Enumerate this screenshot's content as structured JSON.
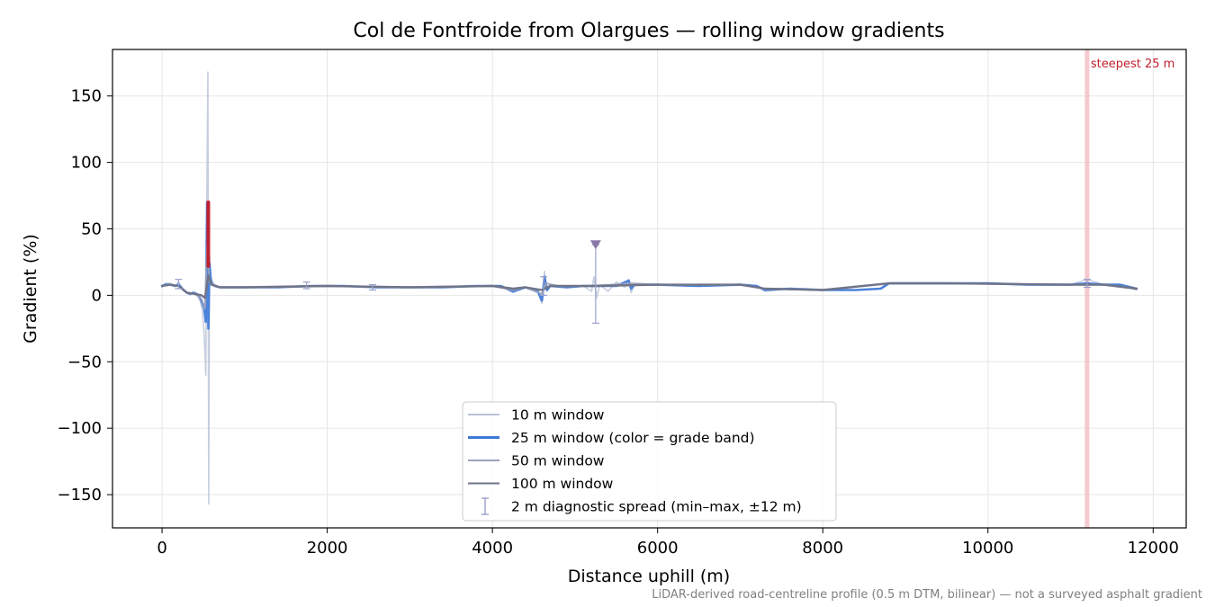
{
  "chart_data": {
    "type": "line",
    "title": "Col de Fontfroide from Olargues — rolling window gradients",
    "xlabel": "Distance uphill (m)",
    "ylabel": "Gradient (%)",
    "xlim": [
      -600,
      12400
    ],
    "ylim": [
      -175,
      185
    ],
    "xticks": [
      0,
      2000,
      4000,
      6000,
      8000,
      10000,
      12000
    ],
    "xtick_labels": [
      "0",
      "2000",
      "4000",
      "6000",
      "8000",
      "10000",
      "12000"
    ],
    "yticks": [
      150,
      100,
      50,
      0,
      -50,
      -100,
      -150
    ],
    "ytick_labels": [
      "150",
      "100",
      "50",
      "0",
      "−50",
      "−100",
      "−150"
    ],
    "grid": true,
    "legend_position": "bottom-center",
    "footnote": "LiDAR-derived road-centreline profile (0.5 m DTM, bilinear) — not a surveyed asphalt gradient",
    "colors": {
      "w10": "#b8c2d6",
      "w25": "#3c78d8",
      "w25_steep": "#c0202e",
      "w50": "#9aa2bd",
      "w100": "#6f7488",
      "spread": "#9aa0cc",
      "marker": "#8a78a8",
      "steepest_band": "#f2b8bd",
      "steepest_label": "#c0202e"
    },
    "series": [
      {
        "name": "10 m window",
        "x": [
          0,
          40,
          100,
          160,
          200,
          260,
          300,
          340,
          380,
          420,
          460,
          490,
          510,
          530,
          545,
          555,
          565,
          575,
          590,
          610,
          640,
          700,
          800,
          1000,
          1400,
          1800,
          2200,
          2600,
          3000,
          3400,
          3800,
          4100,
          4250,
          4400,
          4550,
          4600,
          4630,
          4660,
          4700,
          4900,
          5100,
          5200,
          5230,
          5260,
          5300,
          5400,
          5500,
          5600,
          5650,
          5680,
          5720,
          5800,
          6000,
          6500,
          7000,
          7200,
          7300,
          7600,
          8000,
          8400,
          8700,
          8800,
          9000,
          9500,
          10000,
          10500,
          11000,
          11200,
          11400,
          11600,
          11800
        ],
        "values": [
          6,
          9,
          9,
          7,
          10,
          4,
          2,
          1,
          2,
          1,
          -4,
          -12,
          -30,
          -60,
          100,
          168,
          -157,
          30,
          14,
          10,
          8,
          6,
          6,
          6,
          6,
          7,
          7,
          6,
          6,
          6,
          7,
          7,
          2,
          6,
          2,
          -6,
          18,
          3,
          7,
          6,
          7,
          3,
          14,
          -2,
          8,
          3,
          10,
          6,
          12,
          2,
          8,
          8,
          8,
          7,
          8,
          7,
          3,
          5,
          4,
          4,
          5,
          9,
          9,
          9,
          9,
          8,
          8,
          12,
          8,
          8,
          4
        ]
      },
      {
        "name": "25 m window (color = grade band)",
        "x": [
          0,
          40,
          100,
          160,
          200,
          260,
          300,
          340,
          380,
          420,
          460,
          490,
          510,
          530,
          545,
          560,
          575,
          590,
          610,
          640,
          700,
          800,
          1000,
          1400,
          1800,
          2200,
          2600,
          3000,
          3400,
          3800,
          4100,
          4250,
          4400,
          4550,
          4600,
          4630,
          4660,
          4700,
          4900,
          5100,
          5300,
          5500,
          5650,
          5680,
          5720,
          5800,
          6000,
          6500,
          7000,
          7200,
          7300,
          7600,
          8000,
          8400,
          8700,
          8800,
          9000,
          9500,
          10000,
          10500,
          11000,
          11200,
          11400,
          11600,
          11800
        ],
        "values": [
          7,
          8,
          8,
          7,
          8,
          4,
          2,
          1,
          2,
          1,
          -2,
          -6,
          -10,
          -20,
          70,
          -25,
          24,
          12,
          8,
          7,
          6,
          6,
          6,
          6,
          7,
          7,
          6,
          6,
          6,
          7,
          7,
          3,
          6,
          3,
          -4,
          14,
          4,
          7,
          6,
          7,
          7,
          7,
          11,
          5,
          8,
          8,
          8,
          7,
          8,
          7,
          4,
          5,
          4,
          4,
          5,
          9,
          9,
          9,
          9,
          8,
          8,
          9,
          8,
          8,
          5
        ]
      },
      {
        "name": "50 m window",
        "x": [
          0,
          100,
          200,
          300,
          400,
          480,
          520,
          545,
          575,
          620,
          700,
          1000,
          2000,
          3000,
          4000,
          4250,
          4400,
          4600,
          4650,
          4800,
          5200,
          5700,
          6000,
          7000,
          7300,
          8000,
          8800,
          9500,
          11000,
          11400,
          11800
        ],
        "values": [
          7,
          8,
          7,
          2,
          1,
          -3,
          -10,
          38,
          10,
          8,
          6,
          6,
          7,
          6,
          7,
          4,
          6,
          1,
          9,
          7,
          7,
          9,
          8,
          8,
          5,
          4,
          9,
          9,
          8,
          8,
          5
        ]
      },
      {
        "name": "100 m window",
        "x": [
          0,
          100,
          200,
          300,
          400,
          480,
          520,
          560,
          600,
          700,
          1000,
          2000,
          3000,
          4000,
          4250,
          4400,
          4600,
          4700,
          5200,
          6000,
          7000,
          7300,
          8000,
          8800,
          9500,
          11000,
          11400,
          11800
        ],
        "values": [
          7,
          8,
          7,
          2,
          1,
          0,
          -2,
          15,
          8,
          6,
          6,
          7,
          6,
          7,
          5,
          6,
          4,
          7,
          7,
          8,
          8,
          5,
          4,
          9,
          9,
          8,
          8,
          5
        ]
      }
    ],
    "steep_segment": {
      "x": 560,
      "y_from": 22,
      "y_to": 70
    },
    "spread_markers": [
      {
        "x": 5250,
        "min": -21,
        "max": 38
      },
      {
        "x": 200,
        "min": 5,
        "max": 12
      },
      {
        "x": 1750,
        "min": 5,
        "max": 10
      },
      {
        "x": 2550,
        "min": 4,
        "max": 8
      },
      {
        "x": 4620,
        "min": 0,
        "max": 14
      },
      {
        "x": 11200,
        "min": 6,
        "max": 12
      }
    ],
    "steepest_25m": {
      "x": 11200,
      "label": "steepest 25 m"
    },
    "legend": [
      {
        "label": "10 m window",
        "kind": "line",
        "color_key": "w10"
      },
      {
        "label": "25 m window (color = grade band)",
        "kind": "line-thick",
        "color_key": "w25"
      },
      {
        "label": "50 m window",
        "kind": "line",
        "color_key": "w50"
      },
      {
        "label": "100 m window",
        "kind": "line",
        "color_key": "w100"
      },
      {
        "label": "2 m diagnostic spread (min–max, ±12 m)",
        "kind": "errorbar",
        "color_key": "spread"
      }
    ]
  }
}
